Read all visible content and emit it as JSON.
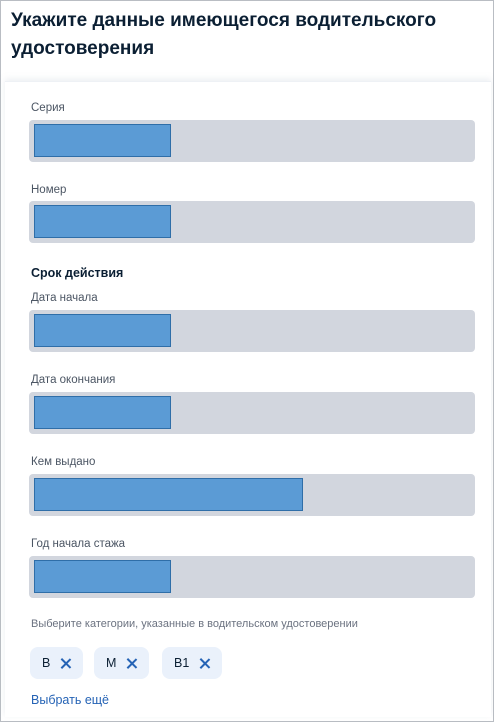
{
  "page": {
    "title": "Укажите данные имеющегося водительского удостоверения"
  },
  "fields": {
    "series": {
      "label": "Серия",
      "value": ""
    },
    "number": {
      "label": "Номер",
      "value": ""
    },
    "validity_section": "Срок действия",
    "start_date": {
      "label": "Дата начала",
      "value": ""
    },
    "end_date": {
      "label": "Дата окончания",
      "value": ""
    },
    "issued_by": {
      "label": "Кем выдано",
      "value": ""
    },
    "experience_year": {
      "label": "Год начала стажа",
      "value": ""
    }
  },
  "categories": {
    "hint": "Выберите категории, указанные в водительском удостоверении",
    "selected": [
      {
        "label": "B"
      },
      {
        "label": "M"
      },
      {
        "label": "B1"
      }
    ],
    "more_link": "Выбрать ещё"
  },
  "colors": {
    "field_bg": "#d2d6de",
    "redaction": "#5b9bd5",
    "chip_bg": "#eaf1fb",
    "link": "#2563b5",
    "title": "#0b1f33"
  }
}
